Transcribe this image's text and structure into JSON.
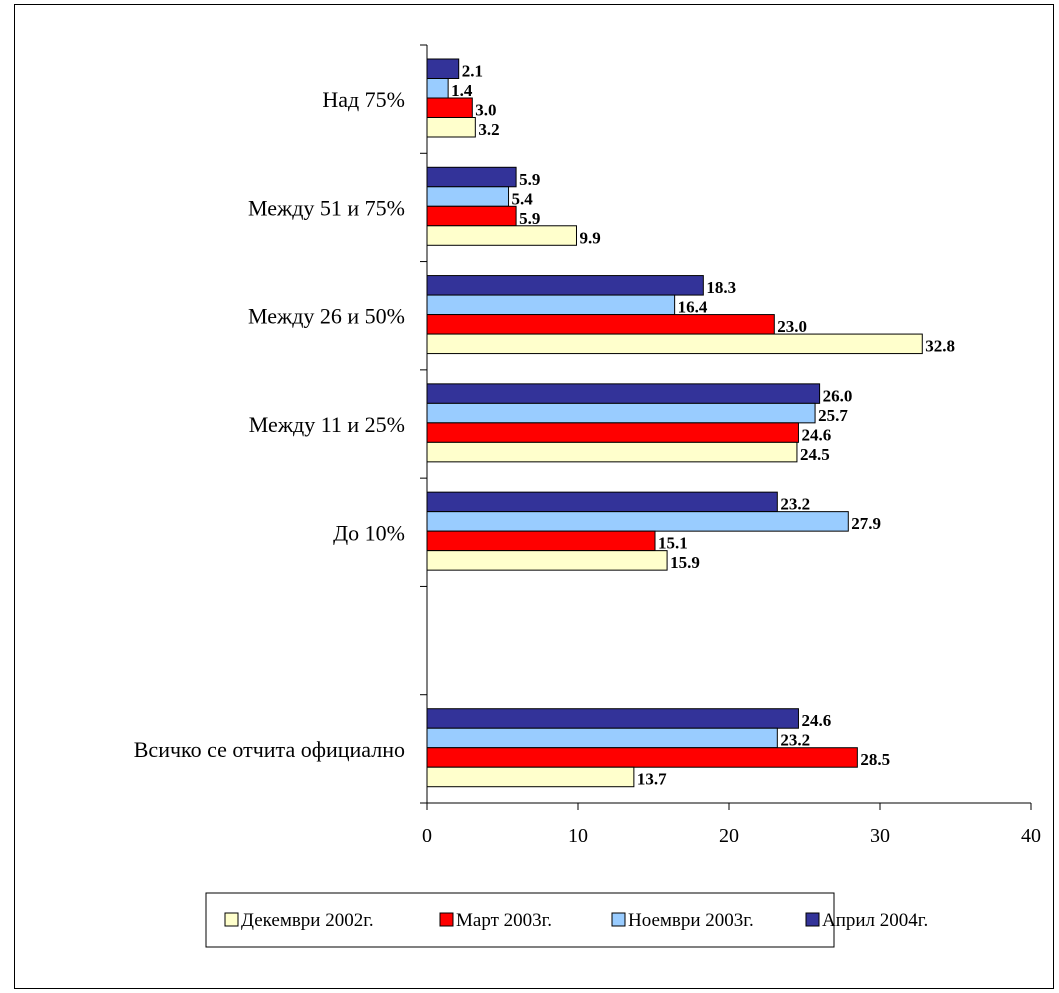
{
  "chart_data": {
    "type": "bar",
    "orientation": "horizontal",
    "categories": [
      "Над 75%",
      "Между 51 и 75%",
      "Между 26 и 50%",
      "Между 11 и 25%",
      "До 10%",
      "",
      "Всичко се отчита официално"
    ],
    "series": [
      {
        "name": "Декември 2002г.",
        "color": "#ffffcc",
        "values": [
          3.2,
          9.9,
          32.8,
          24.5,
          15.9,
          null,
          13.7
        ]
      },
      {
        "name": "Март 2003г.",
        "color": "#ff0000",
        "values": [
          3.0,
          5.9,
          23.0,
          24.6,
          15.1,
          null,
          28.5
        ]
      },
      {
        "name": "Ноември 2003г.",
        "color": "#99ccff",
        "values": [
          1.4,
          5.4,
          16.4,
          25.7,
          27.9,
          null,
          23.2
        ]
      },
      {
        "name": "Април 2004г.",
        "color": "#333399",
        "values": [
          2.1,
          5.9,
          18.3,
          26.0,
          23.2,
          null,
          24.6
        ]
      }
    ],
    "data_labels": [
      [
        "3.2",
        "9.9",
        "32.8",
        "24.5",
        "15.9",
        "",
        "13.7"
      ],
      [
        "3.0",
        "5.9",
        "23.0",
        "24.6",
        "15.1",
        "",
        "28.5"
      ],
      [
        "1.4",
        "5.4",
        "16.4",
        "25.7",
        "27.9",
        "",
        "23.2"
      ],
      [
        "2.1",
        "5.9",
        "18.3",
        "26.0",
        "23.2",
        "",
        "24.6"
      ]
    ],
    "xlim": [
      0,
      40
    ],
    "xticks": [
      "0",
      "10",
      "20",
      "30",
      "40"
    ],
    "grid": false,
    "legend_position": "bottom",
    "title": "",
    "xlabel": "",
    "ylabel": ""
  }
}
